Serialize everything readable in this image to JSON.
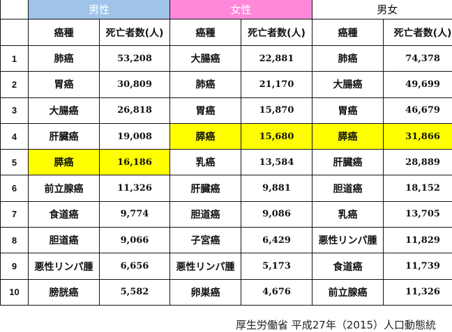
{
  "groups": {
    "male": "男性",
    "female": "女性",
    "both": "男女"
  },
  "subheaders": {
    "type": "癌種",
    "deaths": "死亡者数(人)"
  },
  "highlight_color": "#ffff00",
  "rows": [
    {
      "rank": "1",
      "male": [
        "肺癌",
        "53,208"
      ],
      "female": [
        "大腸癌",
        "22,881"
      ],
      "both": [
        "肺癌",
        "74,378"
      ]
    },
    {
      "rank": "2",
      "male": [
        "胃癌",
        "30,809"
      ],
      "female": [
        "肺癌",
        "21,170"
      ],
      "both": [
        "大腸癌",
        "49,699"
      ]
    },
    {
      "rank": "3",
      "male": [
        "大腸癌",
        "26,818"
      ],
      "female": [
        "胃癌",
        "15,870"
      ],
      "both": [
        "胃癌",
        "46,679"
      ]
    },
    {
      "rank": "4",
      "male": [
        "肝臓癌",
        "19,008"
      ],
      "female": [
        "膵癌",
        "15,680"
      ],
      "both": [
        "膵癌",
        "31,866"
      ]
    },
    {
      "rank": "5",
      "male": [
        "膵癌",
        "16,186"
      ],
      "female": [
        "乳癌",
        "13,584"
      ],
      "both": [
        "肝臓癌",
        "28,889"
      ]
    },
    {
      "rank": "6",
      "male": [
        "前立腺癌",
        "11,326"
      ],
      "female": [
        "肝臓癌",
        "9,881"
      ],
      "both": [
        "胆道癌",
        "18,152"
      ]
    },
    {
      "rank": "7",
      "male": [
        "食道癌",
        "9,774"
      ],
      "female": [
        "胆道癌",
        "9,086"
      ],
      "both": [
        "乳癌",
        "13,705"
      ]
    },
    {
      "rank": "8",
      "male": [
        "胆道癌",
        "9,066"
      ],
      "female": [
        "子宮癌",
        "6,429"
      ],
      "both": [
        "悪性リンパ腫",
        "11,829"
      ]
    },
    {
      "rank": "9",
      "male": [
        "悪性リンパ腫",
        "6,656"
      ],
      "female": [
        "悪性リンパ腫",
        "5,173"
      ],
      "both": [
        "食道癌",
        "11,739"
      ]
    },
    {
      "rank": "10",
      "male": [
        "膀胱癌",
        "5,582"
      ],
      "female": [
        "卵巣癌",
        "4,676"
      ],
      "both": [
        "前立腺癌",
        "11,326"
      ]
    }
  ],
  "caption": "厚生労働省 平成27年（2015）人口動態統"
}
